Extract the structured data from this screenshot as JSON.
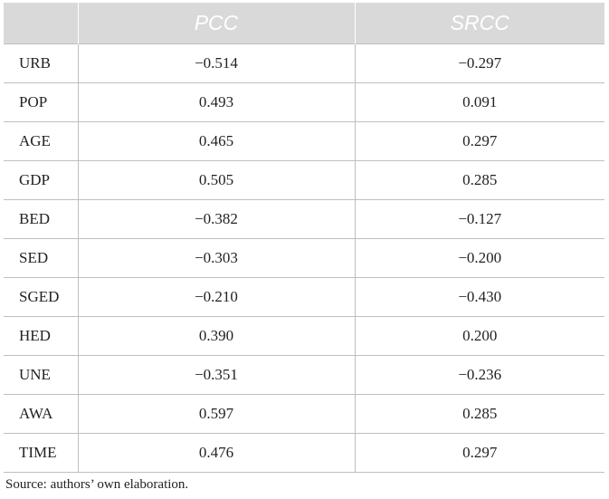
{
  "table": {
    "headers": [
      "",
      "PCC",
      "SRCC"
    ],
    "rows": [
      {
        "label": "URB",
        "pcc": "−0.514",
        "srcc": "−0.297"
      },
      {
        "label": "POP",
        "pcc": "0.493",
        "srcc": "0.091"
      },
      {
        "label": "AGE",
        "pcc": "0.465",
        "srcc": "0.297"
      },
      {
        "label": "GDP",
        "pcc": "0.505",
        "srcc": "0.285"
      },
      {
        "label": "BED",
        "pcc": "−0.382",
        "srcc": "−0.127"
      },
      {
        "label": "SED",
        "pcc": "−0.303",
        "srcc": "−0.200"
      },
      {
        "label": "SGED",
        "pcc": "−0.210",
        "srcc": "−0.430"
      },
      {
        "label": "HED",
        "pcc": "0.390",
        "srcc": "0.200"
      },
      {
        "label": "UNE",
        "pcc": "−0.351",
        "srcc": "−0.236"
      },
      {
        "label": "AWA",
        "pcc": "0.597",
        "srcc": "0.285"
      },
      {
        "label": "TIME",
        "pcc": "0.476",
        "srcc": "0.297"
      }
    ]
  },
  "source_note": "Source: authors’ own elaboration."
}
